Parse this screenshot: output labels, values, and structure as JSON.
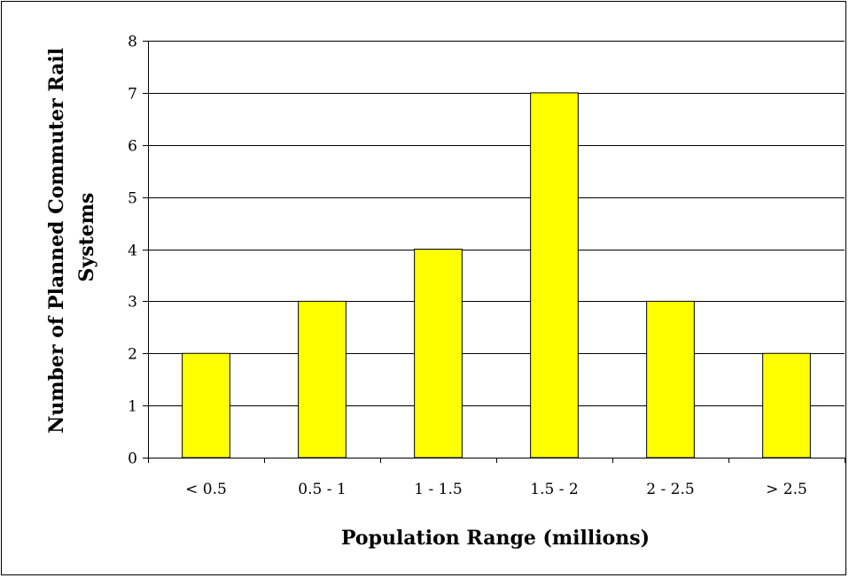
{
  "chart_data": {
    "type": "bar",
    "categories": [
      "< 0.5",
      "0.5 - 1",
      "1 - 1.5",
      "1.5 - 2",
      "2 - 2.5",
      "> 2.5"
    ],
    "values": [
      2,
      3,
      4,
      7,
      3,
      2
    ],
    "title": "",
    "xlabel": "Population Range (millions)",
    "ylabel_lines": [
      "Number of Planned Commuter Rail",
      "Systems"
    ],
    "ylim": [
      0,
      8
    ],
    "yticks": [
      0,
      1,
      2,
      3,
      4,
      5,
      6,
      7,
      8
    ],
    "grid": true,
    "legend": "none",
    "bar_color": "#FFFF00",
    "bar_border_color": "#000000",
    "grid_color": "#000000"
  }
}
